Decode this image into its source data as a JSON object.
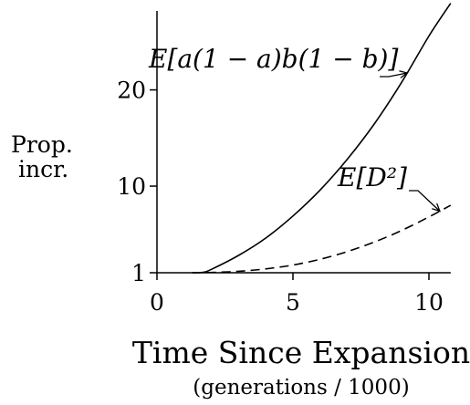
{
  "chart_data": {
    "type": "line",
    "xlabel": "Time Since Expansion",
    "xlabel_sub": "(generations / 1000)",
    "ylabel_lines": [
      "Prop.",
      "incr."
    ],
    "xlim": [
      0,
      10.8
    ],
    "ylim": [
      1,
      29
    ],
    "x_ticks": [
      0,
      5,
      10
    ],
    "y_ticks": [
      1,
      10,
      20
    ],
    "grid": false,
    "legend": "none",
    "series": [
      {
        "name": "E[a(1 − a)b(1 − b)]",
        "style": "solid",
        "color": "#000000",
        "points": [
          [
            1.3,
            1.0
          ],
          [
            1.7,
            1.05
          ],
          [
            2,
            1.35
          ],
          [
            3,
            2.8
          ],
          [
            4,
            4.6
          ],
          [
            5,
            6.9
          ],
          [
            6,
            9.6
          ],
          [
            7,
            12.8
          ],
          [
            8,
            16.5
          ],
          [
            9,
            20.8
          ],
          [
            10,
            25.6
          ],
          [
            10.8,
            29.0
          ]
        ]
      },
      {
        "name": "E[D²]",
        "style": "dashed",
        "color": "#000000",
        "points": [
          [
            1.3,
            1.0
          ],
          [
            2,
            1.03
          ],
          [
            3,
            1.15
          ],
          [
            4,
            1.4
          ],
          [
            5,
            1.8
          ],
          [
            6,
            2.4
          ],
          [
            7,
            3.2
          ],
          [
            8,
            4.2
          ],
          [
            9,
            5.4
          ],
          [
            10,
            6.8
          ],
          [
            10.8,
            8.0
          ]
        ]
      }
    ],
    "annotations": [
      {
        "text": "E[a(1 − a)b(1 − b)]",
        "target_series": 0
      },
      {
        "text": "E[D²]",
        "target_series": 1
      }
    ]
  }
}
